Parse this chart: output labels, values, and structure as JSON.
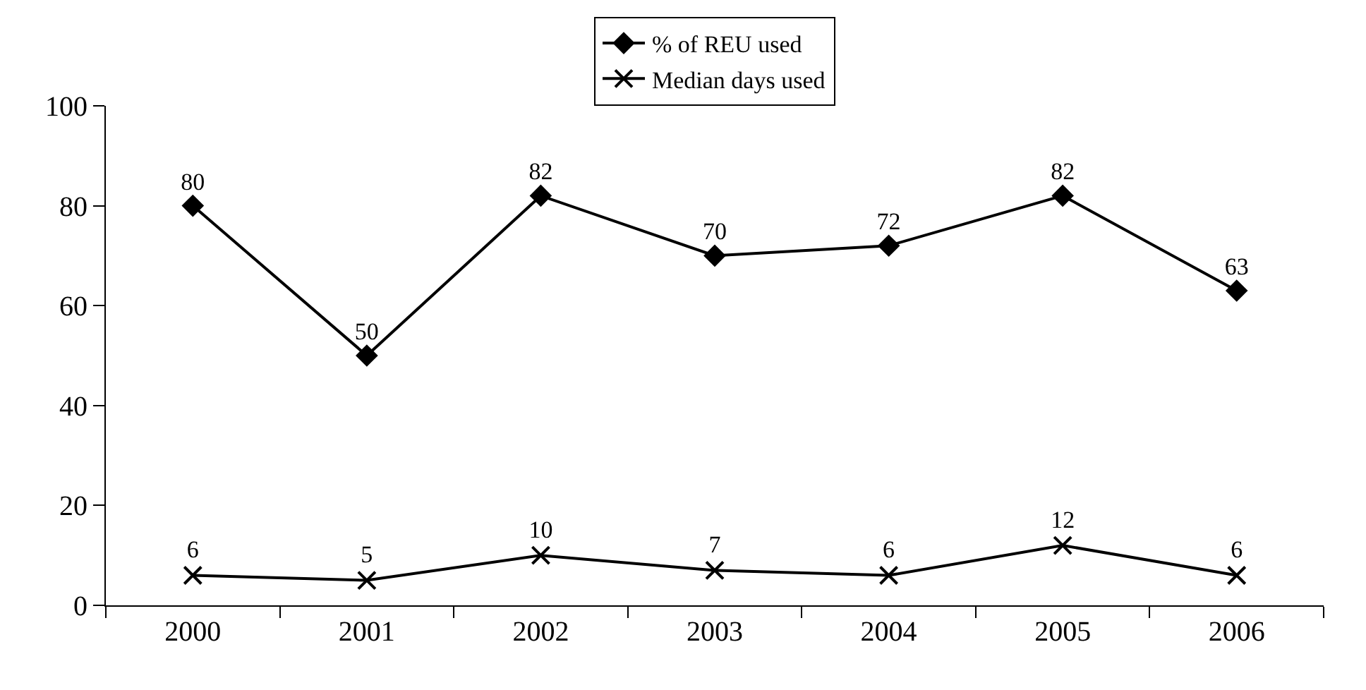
{
  "chart_data": {
    "type": "line",
    "categories": [
      "2000",
      "2001",
      "2002",
      "2003",
      "2004",
      "2005",
      "2006"
    ],
    "series": [
      {
        "name": "% of REU used",
        "color": "#000000",
        "marker": "diamond",
        "values": [
          80,
          50,
          82,
          70,
          72,
          82,
          63
        ]
      },
      {
        "name": "Median days used",
        "color": "#000000",
        "marker": "cross",
        "values": [
          6,
          5,
          10,
          7,
          6,
          12,
          6
        ]
      }
    ],
    "ylim": [
      0,
      100
    ],
    "yticks": [
      0,
      20,
      40,
      60,
      80,
      100
    ],
    "grid": false,
    "legend": "top",
    "data_labels": true,
    "line_style": "solid"
  }
}
